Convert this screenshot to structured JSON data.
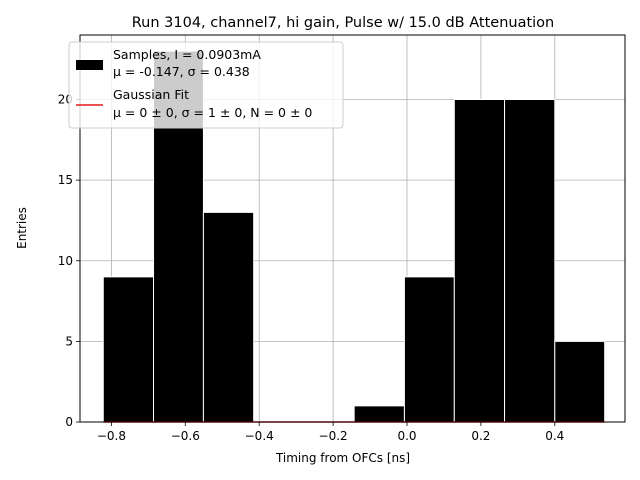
{
  "chart_data": {
    "type": "bar",
    "title": "Run 3104, channel7, hi gain, Pulse w/ 15.0 dB Attenuation",
    "xlabel": "Timing from OFCs [ns]",
    "ylabel": "Entries",
    "xlim": [
      -0.885,
      0.59
    ],
    "ylim": [
      0,
      24
    ],
    "grid": true,
    "xticks": [
      -0.8,
      -0.6,
      -0.4,
      -0.2,
      0.0,
      0.2,
      0.4
    ],
    "xtick_labels": [
      "−0.8",
      "−0.6",
      "−0.4",
      "−0.2",
      "0.0",
      "0.2",
      "0.4"
    ],
    "yticks": [
      0,
      5,
      10,
      15,
      20
    ],
    "ytick_labels": [
      "0",
      "5",
      "10",
      "15",
      "20"
    ],
    "bins": [
      {
        "x0": -0.822,
        "x1": -0.686,
        "value": 9
      },
      {
        "x0": -0.686,
        "x1": -0.551,
        "value": 23
      },
      {
        "x0": -0.551,
        "x1": -0.415,
        "value": 13
      },
      {
        "x0": -0.415,
        "x1": -0.279,
        "value": 0
      },
      {
        "x0": -0.279,
        "x1": -0.143,
        "value": 0
      },
      {
        "x0": -0.143,
        "x1": -0.007,
        "value": 1
      },
      {
        "x0": -0.007,
        "x1": 0.128,
        "value": 9
      },
      {
        "x0": 0.128,
        "x1": 0.264,
        "value": 20
      },
      {
        "x0": 0.264,
        "x1": 0.4,
        "value": 20
      },
      {
        "x0": 0.4,
        "x1": 0.535,
        "value": 5
      }
    ],
    "fit_line": {
      "x": [
        -0.822,
        0.535
      ],
      "y": [
        0,
        0
      ],
      "color": "#e41a1c"
    },
    "bar_color": "#000000",
    "legend": {
      "position": "upper-left",
      "entries": [
        {
          "type": "patch",
          "line1": "Samples, I = 0.0903mA",
          "line2": "μ = -0.147, σ = 0.438"
        },
        {
          "type": "line",
          "line1": "Gaussian Fit",
          "line2": "μ = 0 ± 0, σ = 1 ± 0, N = 0 ± 0"
        }
      ]
    }
  }
}
